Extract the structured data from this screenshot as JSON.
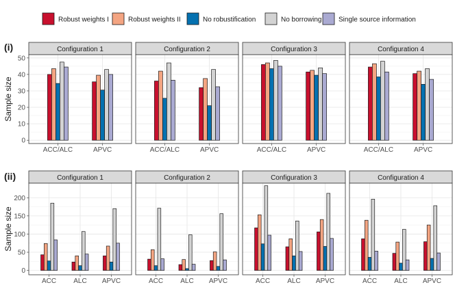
{
  "legend": {
    "items": [
      {
        "label": "Robust weights I",
        "color": "#c8102e"
      },
      {
        "label": "Robust weights II",
        "color": "#f4a582"
      },
      {
        "label": "No robustification",
        "color": "#0571b0"
      },
      {
        "label": "No borrowing",
        "color": "#d3d3d3"
      },
      {
        "label": "Single source information",
        "color": "#aaaad2"
      }
    ]
  },
  "y_axis_title": "Sample size",
  "chart_data": [
    {
      "type": "bar",
      "row_tag": "(i)",
      "ylim": [
        -2,
        52
      ],
      "yticks": [
        0,
        10,
        20,
        30,
        40,
        50
      ],
      "grid": true,
      "panels": [
        {
          "title": "Configuration 1",
          "categories": [
            "ACC/ALC",
            "APVC"
          ],
          "series": [
            {
              "name": "Robust weights I",
              "values": [
                40,
                35.5
              ]
            },
            {
              "name": "Robust weights II",
              "values": [
                43.5,
                39.5
              ]
            },
            {
              "name": "No robustification",
              "values": [
                34.5,
                30.5
              ]
            },
            {
              "name": "No borrowing",
              "values": [
                47.5,
                43
              ]
            },
            {
              "name": "Single source information",
              "values": [
                44.5,
                40
              ]
            }
          ]
        },
        {
          "title": "Configuration 2",
          "categories": [
            "ACC/ALC",
            "APVC"
          ],
          "series": [
            {
              "name": "Robust weights I",
              "values": [
                36,
                32
              ]
            },
            {
              "name": "Robust weights II",
              "values": [
                42,
                37.5
              ]
            },
            {
              "name": "No robustification",
              "values": [
                25.5,
                21
              ]
            },
            {
              "name": "No borrowing",
              "values": [
                47,
                43
              ]
            },
            {
              "name": "Single source information",
              "values": [
                36.5,
                32.5
              ]
            }
          ]
        },
        {
          "title": "Configuration 3",
          "categories": [
            "ACC/ALC",
            "APVC"
          ],
          "series": [
            {
              "name": "Robust weights I",
              "values": [
                46,
                41.5
              ]
            },
            {
              "name": "Robust weights II",
              "values": [
                47,
                42.5
              ]
            },
            {
              "name": "No robustification",
              "values": [
                43.5,
                39.5
              ]
            },
            {
              "name": "No borrowing",
              "values": [
                48.5,
                44
              ]
            },
            {
              "name": "Single source information",
              "values": [
                45,
                40.5
              ]
            }
          ]
        },
        {
          "title": "Configuration 4",
          "categories": [
            "ACC/ALC",
            "APVC"
          ],
          "series": [
            {
              "name": "Robust weights I",
              "values": [
                44.5,
                40.5
              ]
            },
            {
              "name": "Robust weights II",
              "values": [
                46.5,
                42
              ]
            },
            {
              "name": "No robustification",
              "values": [
                38.5,
                34
              ]
            },
            {
              "name": "No borrowing",
              "values": [
                48,
                43.5
              ]
            },
            {
              "name": "Single source information",
              "values": [
                41.5,
                37
              ]
            }
          ]
        }
      ]
    },
    {
      "type": "bar",
      "row_tag": "(ii)",
      "ylim": [
        -12,
        240
      ],
      "yticks": [
        0,
        50,
        100,
        150,
        200
      ],
      "grid": true,
      "panels": [
        {
          "title": "Configuration 1",
          "categories": [
            "ACC",
            "ALC",
            "APVC"
          ],
          "series": [
            {
              "name": "Robust weights I",
              "values": [
                43,
                23,
                40
              ]
            },
            {
              "name": "Robust weights II",
              "values": [
                74,
                40,
                67
              ]
            },
            {
              "name": "No robustification",
              "values": [
                26,
                13,
                23
              ]
            },
            {
              "name": "No borrowing",
              "values": [
                185,
                107,
                170
              ]
            },
            {
              "name": "Single source information",
              "values": [
                84,
                45,
                75
              ]
            }
          ]
        },
        {
          "title": "Configuration 2",
          "categories": [
            "ACC",
            "ALC",
            "APVC"
          ],
          "series": [
            {
              "name": "Robust weights I",
              "values": [
                31,
                16,
                27
              ]
            },
            {
              "name": "Robust weights II",
              "values": [
                57,
                30,
                51
              ]
            },
            {
              "name": "No robustification",
              "values": [
                13,
                5,
                11
              ]
            },
            {
              "name": "No borrowing",
              "values": [
                171,
                98,
                156
              ]
            },
            {
              "name": "Single source information",
              "values": [
                32,
                17,
                29
              ]
            }
          ]
        },
        {
          "title": "Configuration 3",
          "categories": [
            "ACC",
            "ALC",
            "APVC"
          ],
          "series": [
            {
              "name": "Robust weights I",
              "values": [
                117,
                65,
                106
              ]
            },
            {
              "name": "Robust weights II",
              "values": [
                153,
                87,
                140
              ]
            },
            {
              "name": "No robustification",
              "values": [
                73,
                40,
                66
              ]
            },
            {
              "name": "No borrowing",
              "values": [
                233,
                136,
                212
              ]
            },
            {
              "name": "Single source information",
              "values": [
                97,
                52,
                88
              ]
            }
          ]
        },
        {
          "title": "Configuration 4",
          "categories": [
            "ACC",
            "ALC",
            "APVC"
          ],
          "series": [
            {
              "name": "Robust weights I",
              "values": [
                87,
                47,
                79
              ]
            },
            {
              "name": "Robust weights II",
              "values": [
                138,
                78,
                125
              ]
            },
            {
              "name": "No robustification",
              "values": [
                36,
                20,
                33
              ]
            },
            {
              "name": "No borrowing",
              "values": [
                196,
                113,
                178
              ]
            },
            {
              "name": "Single source information",
              "values": [
                53,
                29,
                48
              ]
            }
          ]
        }
      ]
    }
  ]
}
